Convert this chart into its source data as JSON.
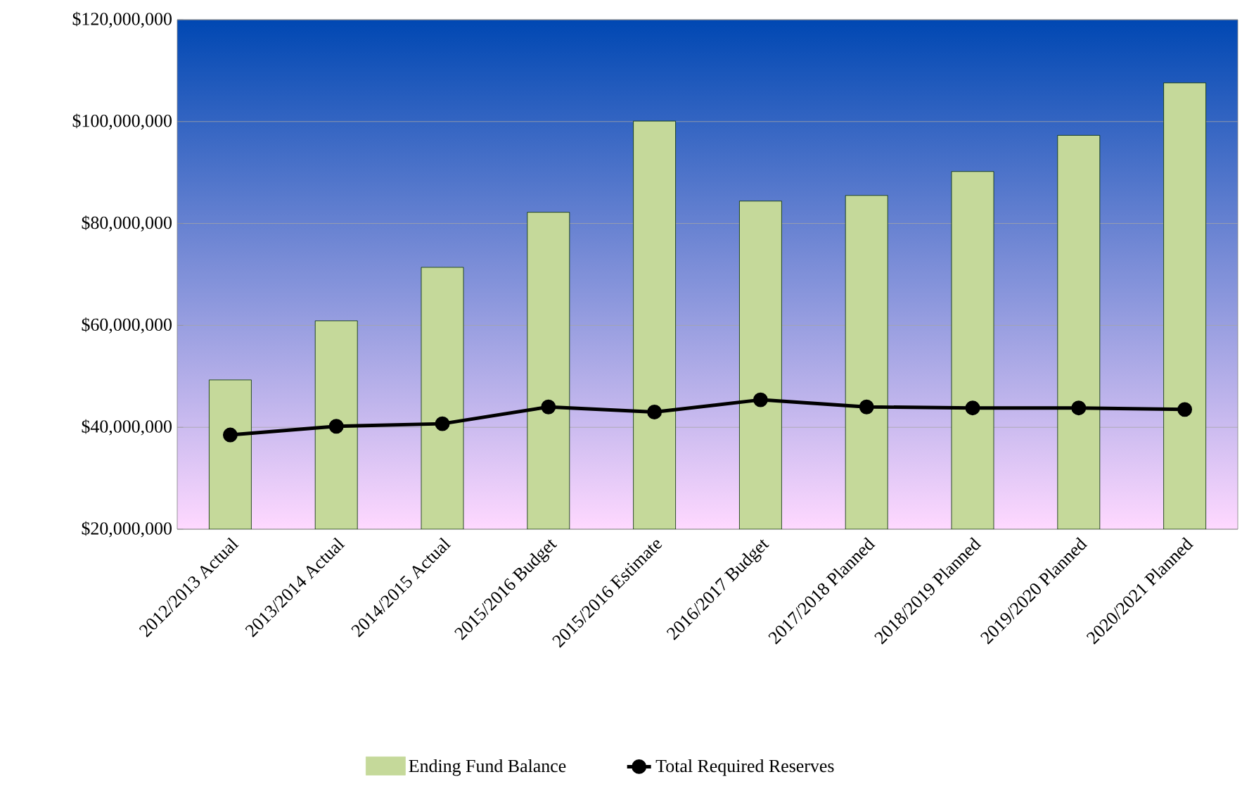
{
  "chart_data": {
    "type": "bar",
    "categories": [
      "2012/2013 Actual",
      "2013/2014 Actual",
      "2014/2015 Actual",
      "2015/2016 Budget",
      "2015/2016 Estimate",
      "2016/2017 Budget",
      "2017/2018 Planned",
      "2018/2019 Planned",
      "2019/2020 Planned",
      "2020/2021 Planned"
    ],
    "series": [
      {
        "name": "Ending Fund Balance",
        "color": "#c5d99a",
        "values": [
          49300000,
          60900000,
          71400000,
          82200000,
          100100000,
          84400000,
          85500000,
          90200000,
          97300000,
          107600000
        ]
      },
      {
        "name": "Total Required Reserves",
        "type": "line",
        "color": "#000000",
        "marker": "circle",
        "values": [
          38500000,
          40200000,
          40700000,
          44000000,
          43000000,
          45400000,
          44000000,
          43800000,
          43800000,
          43500000
        ]
      }
    ],
    "ylim": [
      20000000,
      120000000
    ],
    "yticks": [
      {
        "value": 20000000,
        "label": "$20,000,000"
      },
      {
        "value": 40000000,
        "label": "$40,000,000"
      },
      {
        "value": 60000000,
        "label": "$60,000,000"
      },
      {
        "value": 80000000,
        "label": "$80,000,000"
      },
      {
        "value": 100000000,
        "label": "$100,000,000"
      },
      {
        "value": 120000000,
        "label": "$120,000,000"
      }
    ],
    "grid": "y",
    "legend": "bottom"
  }
}
